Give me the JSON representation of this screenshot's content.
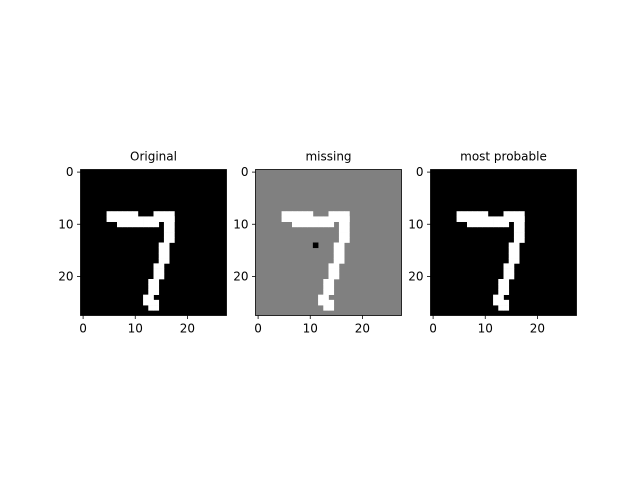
{
  "figure": {
    "background": "#ffffff"
  },
  "chart_data": [
    {
      "type": "heatmap",
      "title": "Original",
      "xticks": [
        0,
        10,
        20
      ],
      "yticks": [
        0,
        10,
        20
      ],
      "xlim": [
        -0.5,
        27.5
      ],
      "ylim": [
        27.5,
        -0.5
      ],
      "colormap": "gray",
      "background_value": 0,
      "pixels": [
        [
          8,
          5,
          1
        ],
        [
          8,
          14,
          1
        ],
        [
          9,
          5,
          1
        ],
        [
          9,
          17,
          1
        ],
        [
          10,
          7,
          1
        ],
        [
          10,
          15,
          0
        ],
        [
          10,
          16,
          1
        ],
        [
          11,
          16,
          1
        ],
        [
          12,
          16,
          1
        ],
        [
          13,
          16,
          1
        ],
        [
          14,
          15,
          1
        ],
        [
          15,
          15,
          1
        ],
        [
          16,
          15,
          1
        ],
        [
          17,
          15,
          1
        ],
        [
          18,
          14,
          1
        ],
        [
          19,
          14,
          1
        ],
        [
          20,
          14,
          1
        ],
        [
          21,
          13,
          1
        ],
        [
          22,
          13,
          1
        ],
        [
          23,
          13,
          1
        ],
        [
          24,
          12,
          1
        ],
        [
          25,
          12,
          1
        ],
        [
          26,
          13,
          1
        ]
      ]
    },
    {
      "type": "heatmap",
      "title": "missing",
      "xticks": [
        0,
        10,
        20
      ],
      "yticks": [
        0,
        10,
        20
      ],
      "xlim": [
        -0.5,
        27.5
      ],
      "ylim": [
        27.5,
        -0.5
      ],
      "colormap": "gray",
      "background_value": 0.5,
      "missing_pixels": [
        [
          14,
          11
        ]
      ],
      "pixels": [
        [
          8,
          5,
          1
        ],
        [
          8,
          14,
          1
        ],
        [
          9,
          5,
          1
        ],
        [
          9,
          17,
          1
        ],
        [
          10,
          7,
          1
        ],
        [
          10,
          15,
          0
        ],
        [
          10,
          16,
          1
        ],
        [
          11,
          16,
          1
        ],
        [
          12,
          16,
          1
        ],
        [
          13,
          16,
          1
        ],
        [
          14,
          15,
          1
        ],
        [
          15,
          15,
          1
        ],
        [
          16,
          15,
          1
        ],
        [
          17,
          15,
          1
        ],
        [
          18,
          14,
          1
        ],
        [
          19,
          14,
          1
        ],
        [
          20,
          14,
          1
        ],
        [
          21,
          13,
          1
        ],
        [
          22,
          13,
          1
        ],
        [
          23,
          13,
          1
        ],
        [
          24,
          12,
          1
        ],
        [
          25,
          12,
          1
        ],
        [
          26,
          13,
          1
        ]
      ]
    },
    {
      "type": "heatmap",
      "title": "most probable",
      "xticks": [
        0,
        10,
        20
      ],
      "yticks": [
        0,
        10,
        20
      ],
      "xlim": [
        -0.5,
        27.5
      ],
      "ylim": [
        27.5,
        -0.5
      ],
      "colormap": "gray",
      "background_value": 0,
      "pixels": [
        [
          8,
          5,
          1
        ],
        [
          8,
          14,
          1
        ],
        [
          9,
          5,
          1
        ],
        [
          9,
          17,
          1
        ],
        [
          10,
          7,
          1
        ],
        [
          10,
          15,
          0
        ],
        [
          10,
          16,
          1
        ],
        [
          11,
          16,
          1
        ],
        [
          12,
          16,
          1
        ],
        [
          13,
          16,
          1
        ],
        [
          14,
          15,
          1
        ],
        [
          15,
          15,
          1
        ],
        [
          16,
          15,
          1
        ],
        [
          17,
          15,
          1
        ],
        [
          18,
          14,
          1
        ],
        [
          19,
          14,
          1
        ],
        [
          20,
          14,
          1
        ],
        [
          21,
          13,
          1
        ],
        [
          22,
          13,
          1
        ],
        [
          23,
          13,
          1
        ],
        [
          24,
          12,
          1
        ],
        [
          25,
          12,
          1
        ],
        [
          26,
          13,
          1
        ]
      ]
    }
  ]
}
